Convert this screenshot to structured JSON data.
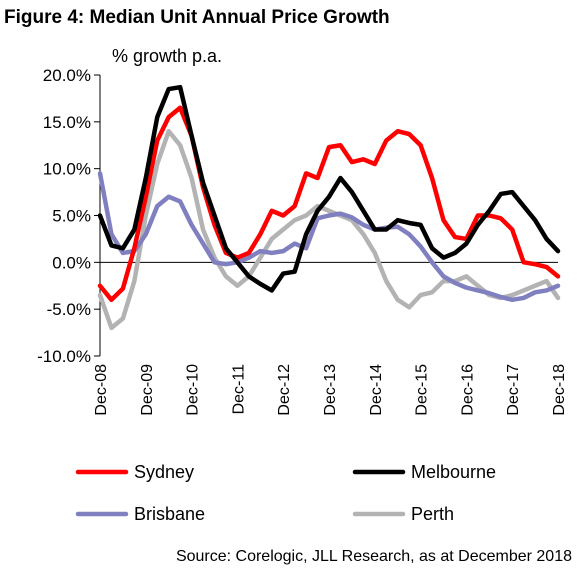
{
  "chart_data": {
    "type": "line",
    "title": "Figure 4: Median Unit Annual Price Growth",
    "ylabel": "% growth p.a.",
    "xlabel": "",
    "ylim": [
      -10,
      20
    ],
    "yticks": [
      -10,
      -5,
      0,
      5,
      10,
      15,
      20
    ],
    "ytick_labels": [
      "-10.0%",
      "-5.0%",
      "0.0%",
      "5.0%",
      "10.0%",
      "15.0%",
      "20.0%"
    ],
    "xlim": [
      "2008-12",
      "2018-12"
    ],
    "x_tick_labels": [
      "Dec-08",
      "Dec-09",
      "Dec-10",
      "Dec-11",
      "Dec-12",
      "Dec-13",
      "Dec-14",
      "Dec-15",
      "Dec-16",
      "Dec-17",
      "Dec-18"
    ],
    "x": [
      "2008-12",
      "2009-03",
      "2009-06",
      "2009-09",
      "2009-12",
      "2010-03",
      "2010-06",
      "2010-09",
      "2010-12",
      "2011-03",
      "2011-06",
      "2011-09",
      "2011-12",
      "2012-03",
      "2012-06",
      "2012-09",
      "2012-12",
      "2013-03",
      "2013-06",
      "2013-09",
      "2013-12",
      "2014-03",
      "2014-06",
      "2014-09",
      "2014-12",
      "2015-03",
      "2015-06",
      "2015-09",
      "2015-12",
      "2016-03",
      "2016-06",
      "2016-09",
      "2016-12",
      "2017-03",
      "2017-06",
      "2017-09",
      "2017-12",
      "2018-03",
      "2018-06",
      "2018-09",
      "2018-12"
    ],
    "series": [
      {
        "name": "Sydney",
        "color": "#ff0000",
        "values": [
          -2.5,
          -4.0,
          -2.8,
          1.5,
          7.0,
          13.0,
          15.5,
          16.5,
          13.5,
          8.0,
          4.0,
          1.0,
          0.5,
          1.0,
          3.0,
          5.5,
          5.0,
          6.0,
          9.5,
          9.0,
          12.3,
          12.5,
          10.7,
          11.0,
          10.5,
          13.0,
          14.0,
          13.7,
          12.5,
          9.0,
          4.5,
          2.7,
          2.5,
          5.0,
          5.0,
          4.7,
          3.5,
          0.0,
          -0.2,
          -0.5,
          -1.5
        ]
      },
      {
        "name": "Melbourne",
        "color": "#000000",
        "values": [
          5.0,
          1.8,
          1.5,
          3.5,
          9.0,
          15.5,
          18.5,
          18.7,
          13.5,
          8.5,
          5.0,
          1.5,
          0.0,
          -1.5,
          -2.3,
          -3.0,
          -1.2,
          -1.0,
          3.0,
          5.5,
          7.0,
          9.0,
          7.5,
          5.5,
          3.5,
          3.5,
          4.5,
          4.2,
          4.0,
          1.5,
          0.5,
          1.0,
          2.0,
          4.0,
          5.5,
          7.3,
          7.5,
          6.0,
          4.5,
          2.5,
          1.2
        ]
      },
      {
        "name": "Brisbane",
        "color": "#8080c0",
        "values": [
          9.5,
          3.0,
          1.0,
          1.2,
          3.0,
          6.0,
          7.0,
          6.5,
          4.0,
          2.0,
          0.0,
          -0.2,
          0.0,
          0.5,
          1.2,
          1.0,
          1.2,
          2.0,
          1.5,
          4.7,
          5.0,
          5.2,
          4.8,
          4.0,
          3.5,
          3.7,
          3.8,
          3.0,
          1.7,
          0.0,
          -1.5,
          -2.2,
          -2.7,
          -3.0,
          -3.3,
          -3.7,
          -4.0,
          -3.8,
          -3.2,
          -3.0,
          -2.5
        ]
      },
      {
        "name": "Perth",
        "color": "#b3b3b3",
        "values": [
          -3.5,
          -7.0,
          -6.0,
          -2.0,
          5.0,
          10.5,
          14.0,
          12.5,
          9.0,
          3.5,
          0.5,
          -1.5,
          -2.5,
          -1.5,
          0.5,
          2.5,
          3.5,
          4.5,
          5.0,
          6.0,
          5.5,
          5.0,
          4.5,
          3.0,
          1.0,
          -2.0,
          -4.0,
          -4.8,
          -3.5,
          -3.2,
          -2.0,
          -2.0,
          -1.5,
          -2.5,
          -3.5,
          -3.8,
          -3.5,
          -3.0,
          -2.5,
          -2.0,
          -3.8
        ]
      }
    ],
    "legend_position": "bottom",
    "legend": [
      "Sydney",
      "Melbourne",
      "Brisbane",
      "Perth"
    ],
    "grid": false,
    "zero_line": true,
    "source": "Source: Corelogic, JLL Research, as at December 2018"
  }
}
